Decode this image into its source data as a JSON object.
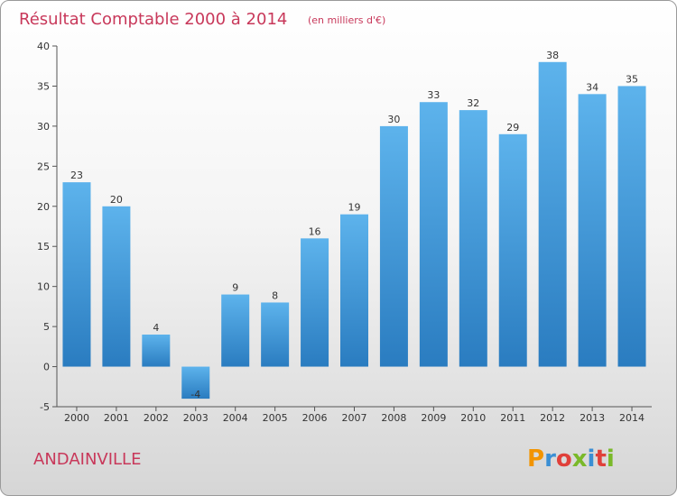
{
  "chart_data": {
    "type": "bar",
    "title": "Résultat Comptable 2000 à 2014",
    "subtitle": "(en milliers d'€)",
    "categories": [
      "2000",
      "2001",
      "2002",
      "2003",
      "2004",
      "2005",
      "2006",
      "2007",
      "2008",
      "2009",
      "2010",
      "2011",
      "2012",
      "2013",
      "2014"
    ],
    "values": [
      23,
      20,
      4,
      -4,
      9,
      8,
      16,
      19,
      30,
      33,
      32,
      29,
      38,
      34,
      35
    ],
    "data_labels": [
      "23",
      "20",
      "4",
      "-4",
      "9",
      "8",
      "16",
      "19",
      "30",
      "33",
      "32",
      "29",
      "38",
      "34",
      "35"
    ],
    "ylim": [
      -5,
      40
    ],
    "yticks": [
      -5,
      0,
      5,
      10,
      15,
      20,
      25,
      30,
      35,
      40
    ],
    "grid": false,
    "bar_color": "#3b9ce0"
  },
  "commune_name": "ANDAINVILLE",
  "logo": {
    "text": "Proxiti",
    "letter_colors": [
      "#f29400",
      "#3b8fd4",
      "#e0403a",
      "#7ab929",
      "#3b8fd4",
      "#e0403a",
      "#7ab929"
    ]
  },
  "colors": {
    "title": "#c8385a",
    "axis": "#555555"
  }
}
